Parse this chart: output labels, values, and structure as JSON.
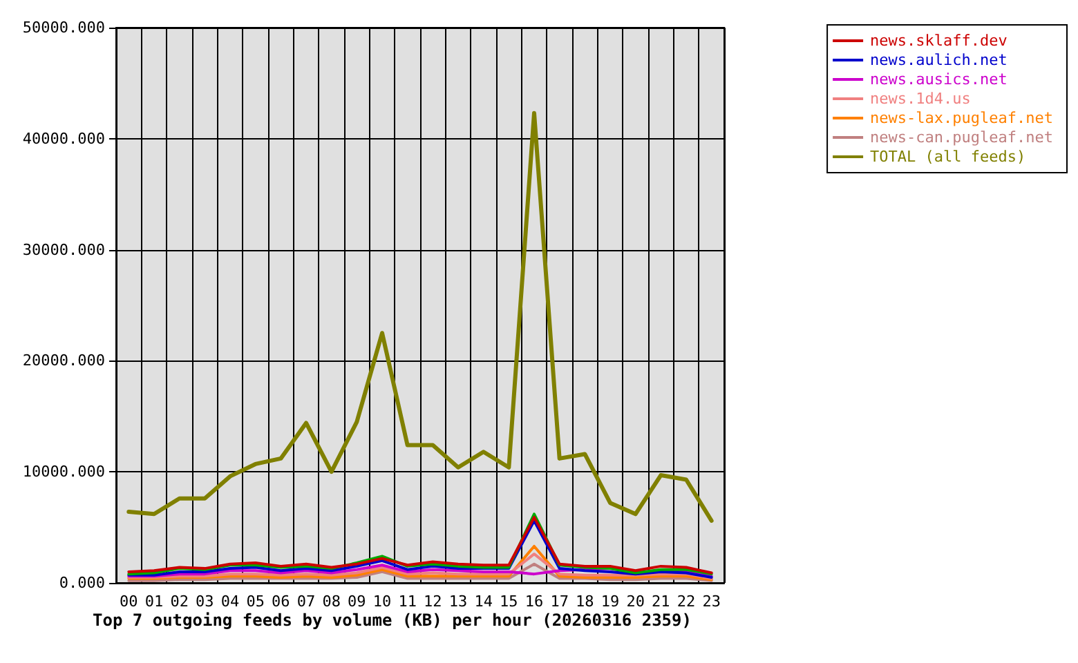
{
  "chart_data": {
    "type": "line",
    "title": "Top 7 outgoing feeds by volume (KB) per hour (20260316 2359)",
    "categories": [
      "00",
      "01",
      "02",
      "03",
      "04",
      "05",
      "06",
      "07",
      "08",
      "09",
      "10",
      "11",
      "12",
      "13",
      "14",
      "15",
      "16",
      "17",
      "18",
      "19",
      "20",
      "21",
      "22",
      "23"
    ],
    "series": [
      {
        "name": "news.sklaff.dev",
        "color": "#cc0000",
        "values": [
          1000,
          1100,
          1400,
          1300,
          1700,
          1800,
          1500,
          1700,
          1400,
          1700,
          2200,
          1600,
          1900,
          1700,
          1600,
          1600,
          5900,
          1700,
          1500,
          1500,
          1100,
          1500,
          1400,
          900
        ]
      },
      {
        "color": "#00aa00",
        "values": [
          800,
          900,
          1300,
          1200,
          1600,
          1600,
          1400,
          1500,
          1300,
          1800,
          2400,
          1500,
          1700,
          1500,
          1400,
          1400,
          6200,
          1600,
          1400,
          1300,
          900,
          1200,
          1200,
          800
        ]
      },
      {
        "name": "news.aulich.net",
        "color": "#0000cc",
        "values": [
          700,
          700,
          1000,
          1000,
          1300,
          1400,
          1100,
          1300,
          1100,
          1500,
          2000,
          1200,
          1500,
          1300,
          1300,
          1300,
          5600,
          1300,
          1100,
          1000,
          800,
          1000,
          900,
          500
        ]
      },
      {
        "name": "news.ausics.net",
        "color": "#cc00cc",
        "values": [
          600,
          600,
          800,
          800,
          1100,
          1100,
          900,
          1100,
          900,
          1200,
          1600,
          1000,
          1200,
          1100,
          1000,
          1000,
          800,
          1100,
          1200,
          1300,
          900,
          1100,
          1100,
          600
        ]
      },
      {
        "name": "news.1d4.us",
        "color": "#f08080",
        "values": [
          500,
          500,
          600,
          600,
          800,
          800,
          700,
          800,
          700,
          900,
          1400,
          800,
          900,
          800,
          800,
          800,
          2600,
          800,
          700,
          700,
          700,
          800,
          800,
          400
        ]
      },
      {
        "name": "news-lax.pugleaf.net",
        "color": "#ff8000",
        "values": [
          400,
          400,
          500,
          500,
          600,
          600,
          500,
          600,
          500,
          700,
          1200,
          600,
          600,
          600,
          600,
          600,
          3300,
          600,
          500,
          500,
          500,
          600,
          600,
          300
        ]
      },
      {
        "name": "news-can.pugleaf.net",
        "color": "#c08080",
        "values": [
          200,
          200,
          300,
          300,
          400,
          400,
          400,
          400,
          400,
          500,
          1000,
          400,
          400,
          400,
          400,
          400,
          1700,
          400,
          400,
          300,
          300,
          400,
          400,
          200
        ]
      },
      {
        "name": "TOTAL (all feeds)",
        "color": "#808000",
        "values": [
          6400,
          6200,
          7600,
          7600,
          9600,
          10700,
          11200,
          14400,
          10000,
          14500,
          22500,
          12400,
          12400,
          10400,
          11800,
          10400,
          42300,
          11200,
          11600,
          7200,
          6200,
          9700,
          9300,
          5600
        ]
      }
    ],
    "ylim": [
      0,
      50000
    ],
    "yticks": [
      {
        "value": 0,
        "label": "0.000"
      },
      {
        "value": 10000,
        "label": "10000.000"
      },
      {
        "value": 20000,
        "label": "20000.000"
      },
      {
        "value": 30000,
        "label": "30000.000"
      },
      {
        "value": 40000,
        "label": "40000.000"
      },
      {
        "value": 50000,
        "label": "50000.000"
      }
    ],
    "grid": true,
    "legend": "top right",
    "marker": "none",
    "line_style": "solid"
  }
}
